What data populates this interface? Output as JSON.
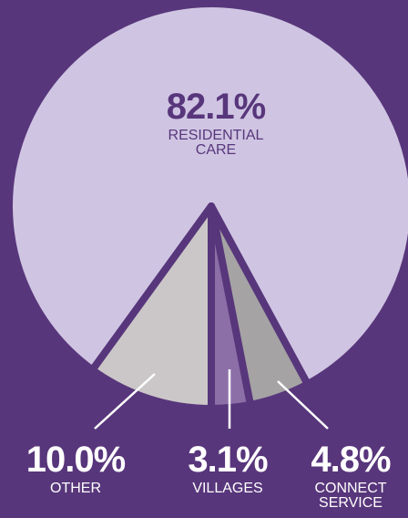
{
  "chart_data": {
    "type": "pie",
    "categories": [
      "RESIDENTIAL CARE",
      "CONNECT SERVICE",
      "VILLAGES",
      "OTHER"
    ],
    "values": [
      82.1,
      4.8,
      3.1,
      10.0
    ],
    "value_labels": [
      "82.1%",
      "4.8%",
      "3.1%",
      "10.0%"
    ],
    "colors": [
      "#cfc5e3",
      "#a5a3a4",
      "#8d6fa8",
      "#cbc7c8"
    ],
    "start_angle": 216,
    "background": "#58367b"
  }
}
